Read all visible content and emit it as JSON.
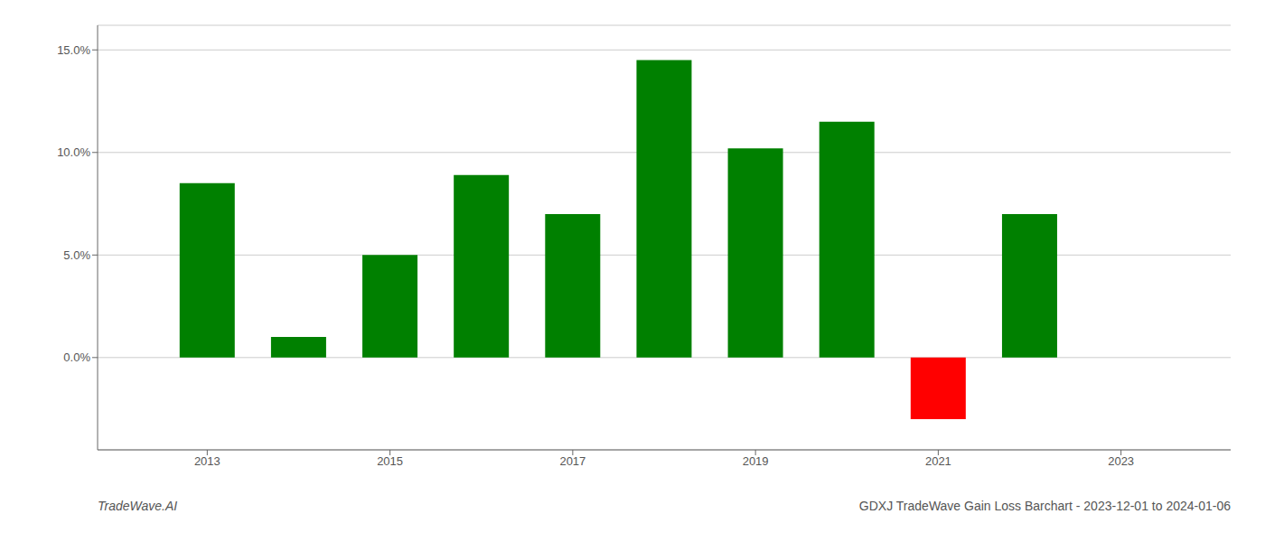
{
  "chart_data": {
    "type": "bar",
    "x": [
      2013,
      2014,
      2015,
      2016,
      2017,
      2018,
      2019,
      2020,
      2021,
      2022
    ],
    "values": [
      0.085,
      0.01,
      0.05,
      0.089,
      0.07,
      0.145,
      0.102,
      0.115,
      -0.03,
      0.07
    ],
    "colors": [
      "#008000",
      "#008000",
      "#008000",
      "#008000",
      "#008000",
      "#008000",
      "#008000",
      "#008000",
      "#ff0000",
      "#008000"
    ],
    "xlim": [
      2011.8,
      2024.2
    ],
    "xticks": [
      2013,
      2015,
      2017,
      2019,
      2021,
      2023
    ],
    "ylim": [
      -0.045,
      0.162
    ],
    "yticks": [
      {
        "value": 0.0,
        "label": "0.0%"
      },
      {
        "value": 0.05,
        "label": "5.0%"
      },
      {
        "value": 0.1,
        "label": "10.0%"
      },
      {
        "value": 0.15,
        "label": "15.0%"
      }
    ],
    "grid": true,
    "annotations": [
      "TradeWave.AI",
      "GDXJ TradeWave Gain Loss Barchart - 2023-12-01 to 2024-01-06"
    ]
  }
}
